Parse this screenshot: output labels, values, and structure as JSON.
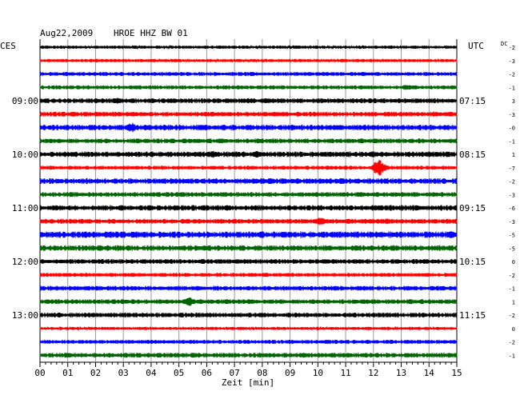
{
  "header": {
    "date": "Aug22,2009",
    "station": "HROE HHZ BW 01",
    "left_zone": "CES",
    "right_zone": "UTC",
    "dc_label": "DC"
  },
  "chart_data": {
    "type": "line",
    "title": "Aug22,2009   HROE HHZ BW 01",
    "xlabel": "Zeit [min]",
    "xlim": [
      0,
      15
    ],
    "x_ticks": [
      "00",
      "01",
      "02",
      "03",
      "04",
      "05",
      "06",
      "07",
      "08",
      "09",
      "10",
      "11",
      "12",
      "13",
      "14",
      "15"
    ],
    "left_time_labels": [
      {
        "row": 4,
        "text": "09:00"
      },
      {
        "row": 8,
        "text": "10:00"
      },
      {
        "row": 12,
        "text": "11:00"
      },
      {
        "row": 16,
        "text": "12:00"
      },
      {
        "row": 20,
        "text": "13:00"
      }
    ],
    "right_time_labels": [
      {
        "row": 4,
        "text": "07:15"
      },
      {
        "row": 8,
        "text": "08:15"
      },
      {
        "row": 12,
        "text": "09:15"
      },
      {
        "row": 16,
        "text": "10:15"
      },
      {
        "row": 20,
        "text": "11:15"
      }
    ],
    "dc_offsets": [
      "-2",
      "-3",
      "-2",
      "-1",
      "3",
      "-3",
      "-0",
      "-1",
      "1",
      "-7",
      "-2",
      "-3",
      "-6",
      "-3",
      "-5",
      "-5",
      "0",
      "-2",
      "-1",
      "1",
      "-2",
      "0",
      "-2",
      "-1"
    ],
    "trace_colors": [
      "#000000",
      "#ff0000",
      "#0000ff",
      "#006400"
    ],
    "traces": [
      {
        "row": 0,
        "color": "#000000",
        "amplitude": 2,
        "events": []
      },
      {
        "row": 1,
        "color": "#ff0000",
        "amplitude": 2,
        "events": []
      },
      {
        "row": 2,
        "color": "#0000ff",
        "amplitude": 2.5,
        "events": []
      },
      {
        "row": 3,
        "color": "#006400",
        "amplitude": 2.5,
        "events": [
          {
            "min": 13.2,
            "amp": 4
          }
        ]
      },
      {
        "row": 4,
        "color": "#000000",
        "amplitude": 3,
        "events": [
          {
            "min": 2.8,
            "amp": 4
          },
          {
            "min": 7.5,
            "amp": 3.5
          }
        ]
      },
      {
        "row": 5,
        "color": "#ff0000",
        "amplitude": 3,
        "events": [
          {
            "min": 14.2,
            "amp": 4
          }
        ]
      },
      {
        "row": 6,
        "color": "#0000ff",
        "amplitude": 3.5,
        "events": [
          {
            "min": 3.3,
            "amp": 7
          }
        ]
      },
      {
        "row": 7,
        "color": "#006400",
        "amplitude": 3,
        "events": []
      },
      {
        "row": 8,
        "color": "#000000",
        "amplitude": 3.5,
        "events": [
          {
            "min": 6.2,
            "amp": 5
          },
          {
            "min": 7.8,
            "amp": 4.5
          },
          {
            "min": 12.0,
            "amp": 4
          }
        ]
      },
      {
        "row": 9,
        "color": "#ff0000",
        "amplitude": 2.5,
        "events": [
          {
            "min": 12.2,
            "amp": 12
          }
        ]
      },
      {
        "row": 10,
        "color": "#0000ff",
        "amplitude": 3.5,
        "events": [
          {
            "min": 8.3,
            "amp": 4
          }
        ]
      },
      {
        "row": 11,
        "color": "#006400",
        "amplitude": 3,
        "events": []
      },
      {
        "row": 12,
        "color": "#000000",
        "amplitude": 3.5,
        "events": []
      },
      {
        "row": 13,
        "color": "#ff0000",
        "amplitude": 3,
        "events": [
          {
            "min": 10.1,
            "amp": 6
          },
          {
            "min": 12.5,
            "amp": 4
          }
        ]
      },
      {
        "row": 14,
        "color": "#0000ff",
        "amplitude": 4,
        "events": [
          {
            "min": 2.5,
            "amp": 5
          },
          {
            "min": 14.8,
            "amp": 5
          }
        ]
      },
      {
        "row": 15,
        "color": "#006400",
        "amplitude": 3.5,
        "events": []
      },
      {
        "row": 16,
        "color": "#000000",
        "amplitude": 3,
        "events": [
          {
            "min": 13.8,
            "amp": 4
          }
        ]
      },
      {
        "row": 17,
        "color": "#ff0000",
        "amplitude": 2.5,
        "events": []
      },
      {
        "row": 18,
        "color": "#0000ff",
        "amplitude": 3,
        "events": []
      },
      {
        "row": 19,
        "color": "#006400",
        "amplitude": 3,
        "events": [
          {
            "min": 5.4,
            "amp": 6
          }
        ]
      },
      {
        "row": 20,
        "color": "#000000",
        "amplitude": 3,
        "events": []
      },
      {
        "row": 21,
        "color": "#ff0000",
        "amplitude": 2,
        "events": []
      },
      {
        "row": 22,
        "color": "#0000ff",
        "amplitude": 2.5,
        "events": []
      },
      {
        "row": 23,
        "color": "#006400",
        "amplitude": 3,
        "events": []
      }
    ]
  }
}
